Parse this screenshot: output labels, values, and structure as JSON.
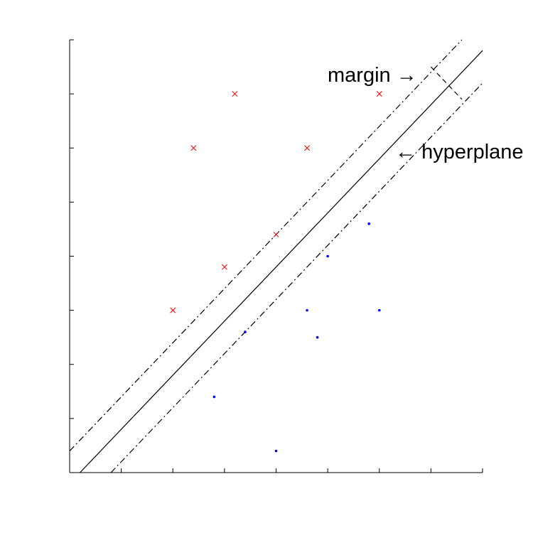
{
  "chart_data": {
    "type": "scatter",
    "title": "",
    "xlabel": "",
    "ylabel": "",
    "xlim": [
      0,
      8
    ],
    "ylim": [
      0,
      8
    ],
    "grid": false,
    "series": [
      {
        "marker": "x",
        "color": "#ff0000",
        "points": [
          [
            2.0,
            3.0
          ],
          [
            3.0,
            3.8
          ],
          [
            4.0,
            4.4
          ],
          [
            2.4,
            6.0
          ],
          [
            3.2,
            7.0
          ],
          [
            4.6,
            6.0
          ],
          [
            6.0,
            7.0
          ]
        ]
      },
      {
        "marker": "dot",
        "color": "#0000ff",
        "points": [
          [
            2.8,
            1.4
          ],
          [
            3.4,
            2.6
          ],
          [
            4.0,
            0.4
          ],
          [
            4.6,
            3.0
          ],
          [
            4.8,
            2.5
          ],
          [
            5.0,
            4.0
          ],
          [
            5.8,
            4.6
          ],
          [
            6.0,
            3.0
          ]
        ]
      }
    ],
    "lines": {
      "hyperplane": [
        [
          0.2,
          0.0
        ],
        [
          8.0,
          7.8
        ]
      ],
      "margin_upper": [
        [
          0.0,
          0.4
        ],
        [
          7.6,
          8.0
        ]
      ],
      "margin_lower": [
        [
          0.8,
          0.0
        ],
        [
          8.0,
          7.2
        ]
      ],
      "margin_measure": [
        [
          7.0,
          7.5
        ],
        [
          7.6,
          6.9
        ]
      ]
    },
    "annotations": [
      {
        "text": "margin",
        "arrow": "→"
      },
      {
        "text": "hyperplane",
        "arrow": "←"
      }
    ]
  }
}
